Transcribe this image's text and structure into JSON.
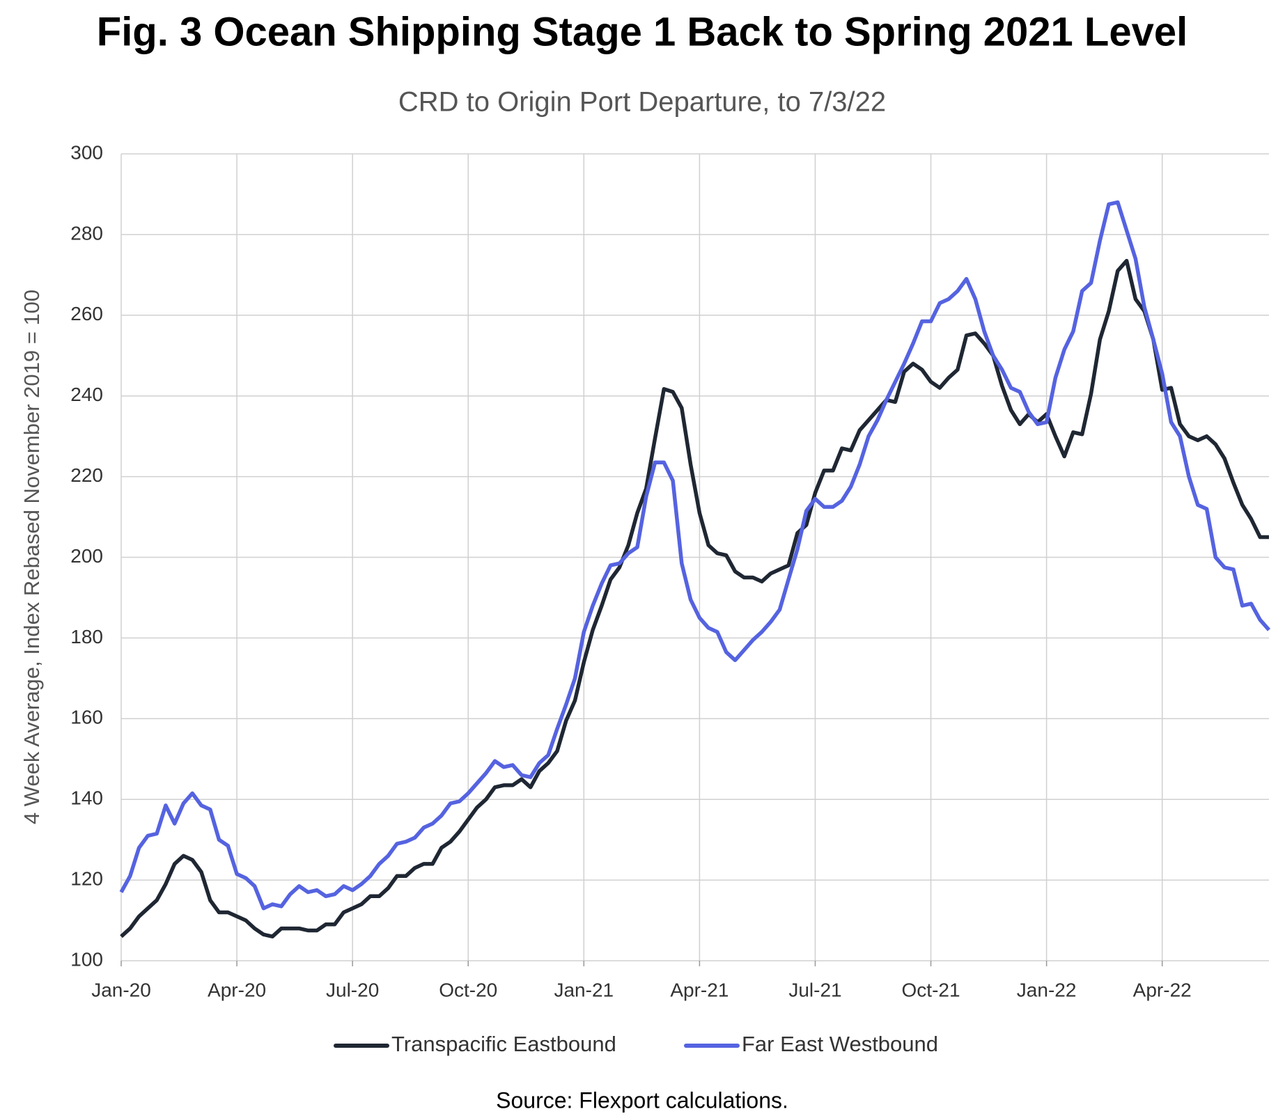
{
  "chart_data": {
    "type": "line",
    "title": "Fig. 3 Ocean Shipping Stage 1 Back to Spring 2021 Level",
    "subtitle": "CRD to Origin Port Departure, to 7/3/22",
    "y_label": "4 Week Average, Index Rebased November 2019 = 100",
    "source": "Source: Flexport calculations.",
    "categories": [
      "Jan-20",
      null,
      null,
      null,
      null,
      null,
      null,
      null,
      null,
      null,
      null,
      null,
      null,
      "Apr-20",
      null,
      null,
      null,
      null,
      null,
      null,
      null,
      null,
      null,
      null,
      null,
      null,
      "Jul-20",
      null,
      null,
      null,
      null,
      null,
      null,
      null,
      null,
      null,
      null,
      null,
      null,
      "Oct-20",
      null,
      null,
      null,
      null,
      null,
      null,
      null,
      null,
      null,
      null,
      null,
      null,
      "Jan-21",
      null,
      null,
      null,
      null,
      null,
      null,
      null,
      null,
      null,
      null,
      null,
      null,
      "Apr-21",
      null,
      null,
      null,
      null,
      null,
      null,
      null,
      null,
      null,
      null,
      null,
      null,
      "Jul-21",
      null,
      null,
      null,
      null,
      null,
      null,
      null,
      null,
      null,
      null,
      null,
      null,
      "Oct-21",
      null,
      null,
      null,
      null,
      null,
      null,
      null,
      null,
      null,
      null,
      null,
      null,
      "Jan-22",
      null,
      null,
      null,
      null,
      null,
      null,
      null,
      null,
      null,
      null,
      null,
      null,
      "Apr-22",
      null,
      null,
      null,
      null,
      null,
      null,
      null,
      null,
      null,
      null,
      null,
      null
    ],
    "series": [
      {
        "name": "Transpacific Eastbound",
        "color": "#1f2733",
        "values": [
          106,
          108,
          111,
          113,
          115,
          119,
          124,
          126,
          125,
          122,
          115,
          112,
          112,
          111,
          110,
          108,
          106.5,
          106,
          108,
          108,
          108,
          107.5,
          107.5,
          109,
          109,
          112,
          113,
          114,
          116,
          116,
          118,
          121,
          121,
          123,
          124,
          124,
          128,
          129.5,
          132,
          135,
          138,
          140,
          143,
          143.5,
          143.5,
          145,
          143,
          147,
          149,
          152,
          159.5,
          164.5,
          174,
          182,
          188,
          194.5,
          197.5,
          203,
          211,
          217,
          229.5,
          241.7,
          241,
          237,
          223,
          211,
          203,
          201,
          200.5,
          196.5,
          195,
          195,
          194,
          196,
          197,
          198,
          206,
          208,
          216,
          221.5,
          221.5,
          227,
          226.5,
          231.5,
          234,
          236.5,
          239,
          238.5,
          246,
          248,
          246.5,
          243.5,
          242,
          244.5,
          246.5,
          255,
          255.5,
          253,
          250,
          242.5,
          236.5,
          233,
          235.5,
          233.5,
          235.5,
          230,
          225,
          231,
          230.5,
          240.5,
          254,
          261,
          271,
          273.5,
          264,
          261,
          254,
          241.5,
          242,
          233,
          230,
          229,
          230,
          228,
          224.5,
          218.5,
          213,
          209.5,
          205,
          205
        ]
      },
      {
        "name": "Far East Westbound",
        "color": "#5563e0",
        "values": [
          117,
          121,
          128,
          131,
          131.5,
          138.5,
          134,
          139,
          141.5,
          138.5,
          137.5,
          130,
          128.5,
          121.5,
          120.5,
          118.5,
          113,
          114,
          113.5,
          116.5,
          118.5,
          117,
          117.5,
          116,
          116.5,
          118.5,
          117.5,
          119,
          121,
          124,
          126,
          129,
          129.5,
          130.5,
          133,
          134,
          136,
          139,
          139.5,
          141.5,
          144,
          146.5,
          149.5,
          148,
          148.5,
          146,
          145.5,
          149,
          151,
          157.5,
          163.5,
          170,
          181.5,
          188,
          193.5,
          198,
          198.5,
          201,
          202.5,
          215,
          223.5,
          223.5,
          219,
          198.5,
          189.5,
          185,
          182.5,
          181.5,
          176.5,
          174.5,
          177,
          179.5,
          181.5,
          184,
          187,
          194.5,
          202,
          211.5,
          214.5,
          212.5,
          212.5,
          214,
          217.5,
          223,
          230,
          234,
          239,
          243.5,
          248,
          253,
          258.5,
          258.5,
          263,
          264,
          266,
          269,
          264,
          256,
          250,
          246.5,
          242,
          241,
          236,
          233,
          233.5,
          244.5,
          251.5,
          256,
          266,
          268,
          278.5,
          287.5,
          288,
          281,
          274,
          262,
          254,
          245.5,
          233.5,
          230,
          220,
          213,
          212,
          200,
          197.5,
          197,
          188,
          188.5,
          184.5,
          182
        ]
      }
    ],
    "ylim": [
      100,
      300
    ],
    "yticks": [
      100,
      120,
      140,
      160,
      180,
      200,
      220,
      240,
      260,
      280,
      300
    ],
    "grid": true
  }
}
